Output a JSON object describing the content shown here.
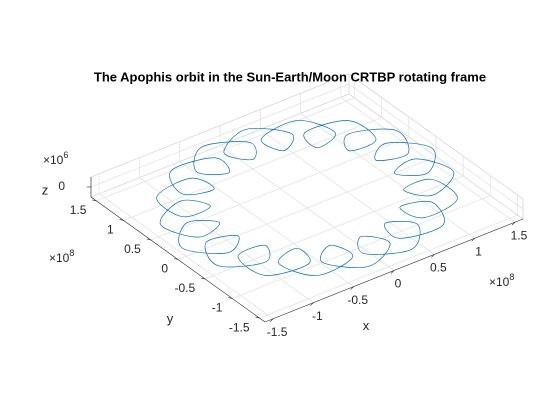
{
  "chart_data": {
    "type": "line3d",
    "title": "The Apophis orbit in the Sun-Earth/Moon CRTBP rotating frame",
    "x_label": "x",
    "y_label": "y",
    "z_label": "z",
    "x_multiplier": {
      "base": "×10",
      "exponent": "8"
    },
    "y_multiplier": {
      "base": "×10",
      "exponent": "8"
    },
    "z_multiplier": {
      "base": "×10",
      "exponent": "6"
    },
    "xlim": [
      -1.6,
      1.6
    ],
    "ylim": [
      -1.6,
      1.6
    ],
    "zlim": [
      -1,
      1
    ],
    "xticks": [
      -1.5,
      -1,
      -0.5,
      0,
      0.5,
      1,
      1.5
    ],
    "yticks": [
      -1.5,
      -1,
      -0.5,
      0,
      0.5,
      1,
      1.5
    ],
    "zticks": [
      0
    ],
    "grid": true,
    "series": [
      {
        "color": "#0072bd",
        "x": [
          1.55,
          1.24,
          0.97,
          1.3,
          1.46,
          1.04,
          0.86,
          1.2,
          1.19,
          0.71,
          0.64,
          0.95,
          0.78,
          0.29,
          0.34,
          0.59,
          0.27,
          -0.16,
          0,
          0.16,
          -0.27,
          -0.59,
          -0.34,
          -0.29,
          -0.78,
          -0.95,
          -0.64,
          -0.71,
          -1.19,
          -1.2,
          -0.86,
          -1.04,
          -1.46,
          -1.3,
          -0.97,
          -1.24,
          -1.55,
          -1.24,
          -0.97,
          -1.3,
          -1.46,
          -1.04,
          -0.86,
          -1.2,
          -1.19,
          -0.71,
          -0.64,
          -0.95,
          -0.78,
          -0.29,
          -0.34,
          -0.59,
          -0.27,
          0.16,
          0,
          -0.16,
          0.27,
          0.59,
          0.34,
          0.29,
          0.78,
          0.95,
          0.64,
          0.71,
          1.19,
          1.2,
          0.86,
          1.04,
          1.46,
          1.3,
          0.97,
          1.24
        ],
        "y": [
          0,
          0.38,
          0.17,
          0.07,
          0.53,
          0.78,
          0.5,
          0.51,
          1.0,
          1.09,
          0.76,
          0.89,
          1.34,
          1.27,
          0.93,
          1.16,
          1.53,
          1.29,
          0.99,
          1.29,
          1.53,
          1.16,
          0.93,
          1.27,
          1.34,
          0.89,
          0.76,
          1.09,
          1.0,
          0.51,
          0.5,
          0.78,
          0.53,
          0.07,
          0.17,
          0.38,
          0,
          -0.38,
          -0.17,
          -0.07,
          -0.53,
          -0.78,
          -0.5,
          -0.51,
          -1.0,
          -1.09,
          -0.76,
          -0.89,
          -1.34,
          -1.27,
          -0.93,
          -1.16,
          -1.53,
          -1.29,
          -0.99,
          -1.29,
          -1.53,
          -1.16,
          -0.93,
          -1.27,
          -1.34,
          -0.89,
          -0.76,
          -1.09,
          -1.0,
          -0.51,
          -0.5,
          -0.78,
          -0.53,
          -0.07,
          -0.17,
          -0.38
        ]
      }
    ]
  }
}
